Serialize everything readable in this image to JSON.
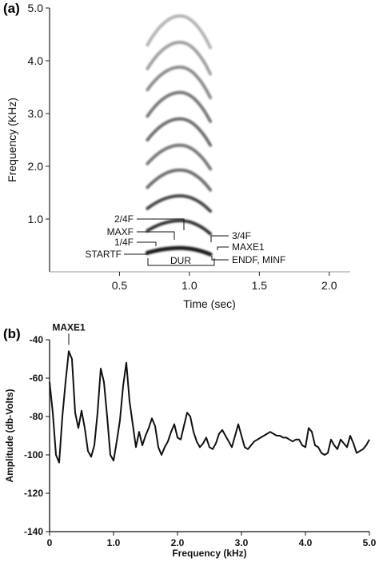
{
  "chart_data": [
    {
      "panel": "(a)",
      "type": "spectrogram",
      "xlabel": "Time (sec)",
      "ylabel": "Frequency (KHz)",
      "xlim": [
        0.0,
        2.15
      ],
      "ylim": [
        0.0,
        5.0
      ],
      "xticks": [
        "0.5",
        "1.0",
        "1.5",
        "2.0"
      ],
      "yticks": [
        "1.0",
        "2.0",
        "3.0",
        "4.0",
        "5.0"
      ],
      "harmonics": [
        {
          "start_khz": 0.36,
          "peak_khz": 0.45,
          "end_khz": 0.33,
          "darkness": 0.95
        },
        {
          "start_khz": 0.78,
          "peak_khz": 0.97,
          "end_khz": 0.72,
          "darkness": 0.85
        },
        {
          "start_khz": 1.2,
          "peak_khz": 1.44,
          "end_khz": 1.15,
          "darkness": 0.75
        },
        {
          "start_khz": 1.6,
          "peak_khz": 1.93,
          "end_khz": 1.55,
          "darkness": 0.55
        },
        {
          "start_khz": 2.05,
          "peak_khz": 2.4,
          "end_khz": 1.95,
          "darkness": 0.5
        },
        {
          "start_khz": 2.5,
          "peak_khz": 2.9,
          "end_khz": 2.4,
          "darkness": 0.55
        },
        {
          "start_khz": 2.95,
          "peak_khz": 3.4,
          "end_khz": 2.85,
          "darkness": 0.5
        },
        {
          "start_khz": 3.45,
          "peak_khz": 3.88,
          "end_khz": 3.3,
          "darkness": 0.4
        },
        {
          "start_khz": 3.85,
          "peak_khz": 4.35,
          "end_khz": 3.75,
          "darkness": 0.3
        },
        {
          "start_khz": 4.3,
          "peak_khz": 4.85,
          "end_khz": 4.25,
          "darkness": 0.2
        }
      ],
      "call_time_sec": [
        0.7,
        1.15
      ],
      "annotations_left": [
        "2/4F",
        "MAXF",
        "1/4F",
        "STARTF"
      ],
      "annotations_right": [
        "3/4F",
        "MAXE1",
        "ENDF, MINF"
      ],
      "duration_label": "DUR"
    },
    {
      "panel": "(b)",
      "type": "line",
      "xlabel": "Frequency (kHz)",
      "ylabel": "Amplitude (db-Volts)",
      "xlim": [
        0.0,
        5.0
      ],
      "ylim": [
        -140,
        -40
      ],
      "xticks": [
        "0",
        "1.0",
        "2.0",
        "3.0",
        "4.0",
        "5.0"
      ],
      "yticks": [
        "-40",
        "-60",
        "-80",
        "-100",
        "-120",
        "-140"
      ],
      "peak_label": "MAXE1",
      "series": [
        {
          "x": [
            0,
            0.05,
            0.1,
            0.15,
            0.2,
            0.25,
            0.3,
            0.35,
            0.4,
            0.45,
            0.5,
            0.55,
            0.6,
            0.65,
            0.7,
            0.75,
            0.8,
            0.85,
            0.9,
            0.95,
            1.0,
            1.05,
            1.1,
            1.15,
            1.2,
            1.25,
            1.3,
            1.35,
            1.4,
            1.45,
            1.5,
            1.55,
            1.6,
            1.65,
            1.7,
            1.75,
            1.8,
            1.85,
            1.9,
            1.95,
            2.0,
            2.05,
            2.1,
            2.15,
            2.2,
            2.25,
            2.3,
            2.35,
            2.4,
            2.45,
            2.5,
            2.55,
            2.6,
            2.65,
            2.7,
            2.75,
            2.8,
            2.85,
            2.9,
            2.95,
            3.0,
            3.05,
            3.1,
            3.15,
            3.2,
            3.25,
            3.3,
            3.35,
            3.4,
            3.45,
            3.5,
            3.55,
            3.6,
            3.65,
            3.7,
            3.75,
            3.8,
            3.85,
            3.9,
            3.95,
            4.0,
            4.05,
            4.1,
            4.15,
            4.2,
            4.25,
            4.3,
            4.35,
            4.4,
            4.45,
            4.5,
            4.55,
            4.6,
            4.65,
            4.7,
            4.75,
            4.8,
            4.85,
            4.9,
            4.95,
            5.0
          ],
          "y": [
            -62,
            -78,
            -100,
            -104,
            -80,
            -62,
            -46,
            -50,
            -78,
            -86,
            -77,
            -86,
            -98,
            -101,
            -95,
            -78,
            -55,
            -62,
            -80,
            -100,
            -103,
            -93,
            -82,
            -64,
            -52,
            -72,
            -84,
            -96,
            -88,
            -95,
            -90,
            -86,
            -81,
            -85,
            -96,
            -100,
            -96,
            -93,
            -88,
            -84,
            -91,
            -92,
            -85,
            -78,
            -80,
            -88,
            -93,
            -96,
            -94,
            -91,
            -96,
            -97,
            -94,
            -89,
            -87,
            -90,
            -93,
            -96,
            -90,
            -84,
            -90,
            -96,
            -97,
            -95,
            -93,
            -92,
            -91,
            -90,
            -89,
            -88,
            -89,
            -90,
            -90,
            -91,
            -91,
            -92,
            -93,
            -92,
            -92,
            -95,
            -96,
            -86,
            -88,
            -95,
            -96,
            -99,
            -100,
            -99,
            -92,
            -95,
            -97,
            -92,
            -94,
            -96,
            -90,
            -94,
            -99,
            -98,
            -97,
            -95,
            -92
          ]
        }
      ]
    }
  ]
}
